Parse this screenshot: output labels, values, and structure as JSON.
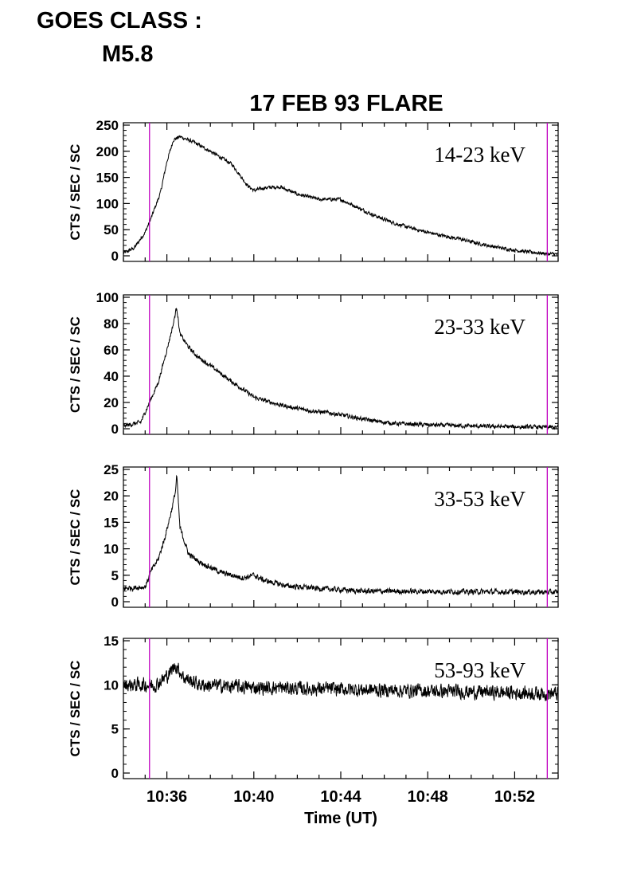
{
  "header": {
    "goes_label": "GOES CLASS :",
    "goes_value": "M5.8"
  },
  "colors": {
    "marker": "#c000c0",
    "trace": "#000000"
  },
  "chart_data": {
    "type": "line",
    "title": "17 FEB 93 FLARE",
    "xlabel": "Time (UT)",
    "x_tick_labels": [
      "10:36",
      "10:40",
      "10:44",
      "10:48",
      "10:52"
    ],
    "x_range_minutes": [
      34.0,
      54.0
    ],
    "marker_times_minutes": [
      35.2,
      53.5
    ],
    "panels": [
      {
        "band": "14-23 keV",
        "ylabel": "CTS / SEC / SC",
        "ylim": [
          0,
          250
        ],
        "yticks": [
          0,
          50,
          100,
          150,
          200,
          250
        ],
        "noise": 3,
        "profile": [
          [
            34.0,
            5
          ],
          [
            34.5,
            15
          ],
          [
            35.0,
            45
          ],
          [
            35.3,
            75
          ],
          [
            35.7,
            120
          ],
          [
            36.0,
            180
          ],
          [
            36.3,
            222
          ],
          [
            36.6,
            228
          ],
          [
            37.2,
            218
          ],
          [
            38.0,
            200
          ],
          [
            39.0,
            175
          ],
          [
            39.7,
            135
          ],
          [
            40.0,
            125
          ],
          [
            40.5,
            130
          ],
          [
            41.2,
            132
          ],
          [
            42.0,
            118
          ],
          [
            43.0,
            108
          ],
          [
            44.0,
            108
          ],
          [
            44.5,
            98
          ],
          [
            45.5,
            78
          ],
          [
            46.5,
            62
          ],
          [
            47.5,
            50
          ],
          [
            48.5,
            40
          ],
          [
            49.5,
            32
          ],
          [
            50.5,
            22
          ],
          [
            51.5,
            14
          ],
          [
            52.5,
            8
          ],
          [
            53.5,
            4
          ],
          [
            54.0,
            3
          ]
        ]
      },
      {
        "band": "23-33 keV",
        "ylabel": "CTS / SEC / SC",
        "ylim": [
          0,
          100
        ],
        "yticks": [
          0,
          20,
          40,
          60,
          80,
          100
        ],
        "noise": 1.4,
        "profile": [
          [
            34.0,
            2
          ],
          [
            34.8,
            5
          ],
          [
            35.2,
            20
          ],
          [
            35.6,
            35
          ],
          [
            36.0,
            60
          ],
          [
            36.3,
            80
          ],
          [
            36.45,
            93
          ],
          [
            36.6,
            72
          ],
          [
            37.0,
            62
          ],
          [
            37.4,
            55
          ],
          [
            38.0,
            48
          ],
          [
            38.8,
            38
          ],
          [
            39.5,
            30
          ],
          [
            40.0,
            24
          ],
          [
            40.8,
            20
          ],
          [
            41.5,
            17
          ],
          [
            42.5,
            14
          ],
          [
            43.5,
            12
          ],
          [
            44.5,
            9
          ],
          [
            45.5,
            6
          ],
          [
            46.5,
            4
          ],
          [
            48.0,
            3
          ],
          [
            50.0,
            2
          ],
          [
            52.0,
            1.5
          ],
          [
            54.0,
            1
          ]
        ]
      },
      {
        "band": "33-53 keV",
        "ylabel": "CTS / SEC / SC",
        "ylim": [
          0,
          25
        ],
        "yticks": [
          0,
          5,
          10,
          15,
          20,
          25
        ],
        "noise": 0.45,
        "profile": [
          [
            34.0,
            2.5
          ],
          [
            35.0,
            2.8
          ],
          [
            35.3,
            6
          ],
          [
            35.6,
            8
          ],
          [
            35.9,
            12
          ],
          [
            36.2,
            17
          ],
          [
            36.4,
            21
          ],
          [
            36.45,
            24
          ],
          [
            36.6,
            14
          ],
          [
            37.0,
            9
          ],
          [
            37.5,
            7.5
          ],
          [
            38.0,
            6.5
          ],
          [
            38.5,
            5.5
          ],
          [
            39.0,
            5
          ],
          [
            39.5,
            4.5
          ],
          [
            40.0,
            5
          ],
          [
            40.5,
            4
          ],
          [
            41.5,
            3
          ],
          [
            43.0,
            2.5
          ],
          [
            45.0,
            2
          ],
          [
            54.0,
            1.8
          ]
        ]
      },
      {
        "band": "53-93 keV",
        "ylabel": "CTS / SEC / SC",
        "ylim": [
          0,
          15
        ],
        "yticks": [
          0,
          5,
          10,
          15
        ],
        "noise": 0.7,
        "profile": [
          [
            34.0,
            10
          ],
          [
            35.5,
            10
          ],
          [
            36.0,
            11
          ],
          [
            36.4,
            12.2
          ],
          [
            36.8,
            10.8
          ],
          [
            37.5,
            10
          ],
          [
            40.0,
            9.7
          ],
          [
            44.0,
            9.5
          ],
          [
            48.0,
            9.3
          ],
          [
            54.0,
            9
          ]
        ]
      }
    ]
  }
}
